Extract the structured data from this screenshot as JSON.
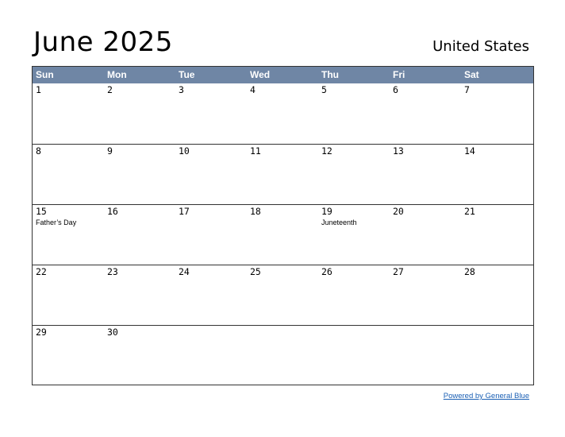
{
  "header": {
    "title": "June 2025",
    "country": "United States"
  },
  "weekdays": [
    "Sun",
    "Mon",
    "Tue",
    "Wed",
    "Thu",
    "Fri",
    "Sat"
  ],
  "weeks": [
    [
      {
        "day": "1"
      },
      {
        "day": "2"
      },
      {
        "day": "3"
      },
      {
        "day": "4"
      },
      {
        "day": "5"
      },
      {
        "day": "6"
      },
      {
        "day": "7"
      }
    ],
    [
      {
        "day": "8"
      },
      {
        "day": "9"
      },
      {
        "day": "10"
      },
      {
        "day": "11"
      },
      {
        "day": "12"
      },
      {
        "day": "13"
      },
      {
        "day": "14"
      }
    ],
    [
      {
        "day": "15",
        "holiday": "Father’s Day"
      },
      {
        "day": "16"
      },
      {
        "day": "17"
      },
      {
        "day": "18"
      },
      {
        "day": "19",
        "holiday": "Juneteenth"
      },
      {
        "day": "20"
      },
      {
        "day": "21"
      }
    ],
    [
      {
        "day": "22"
      },
      {
        "day": "23"
      },
      {
        "day": "24"
      },
      {
        "day": "25"
      },
      {
        "day": "26"
      },
      {
        "day": "27"
      },
      {
        "day": "28"
      }
    ],
    [
      {
        "day": "29"
      },
      {
        "day": "30"
      },
      {
        "day": ""
      },
      {
        "day": ""
      },
      {
        "day": ""
      },
      {
        "day": ""
      },
      {
        "day": ""
      }
    ]
  ],
  "footer": {
    "link_text": "Powered by General Blue"
  },
  "colors": {
    "header_bg": "#6f86a5",
    "link": "#1a5fb4"
  }
}
